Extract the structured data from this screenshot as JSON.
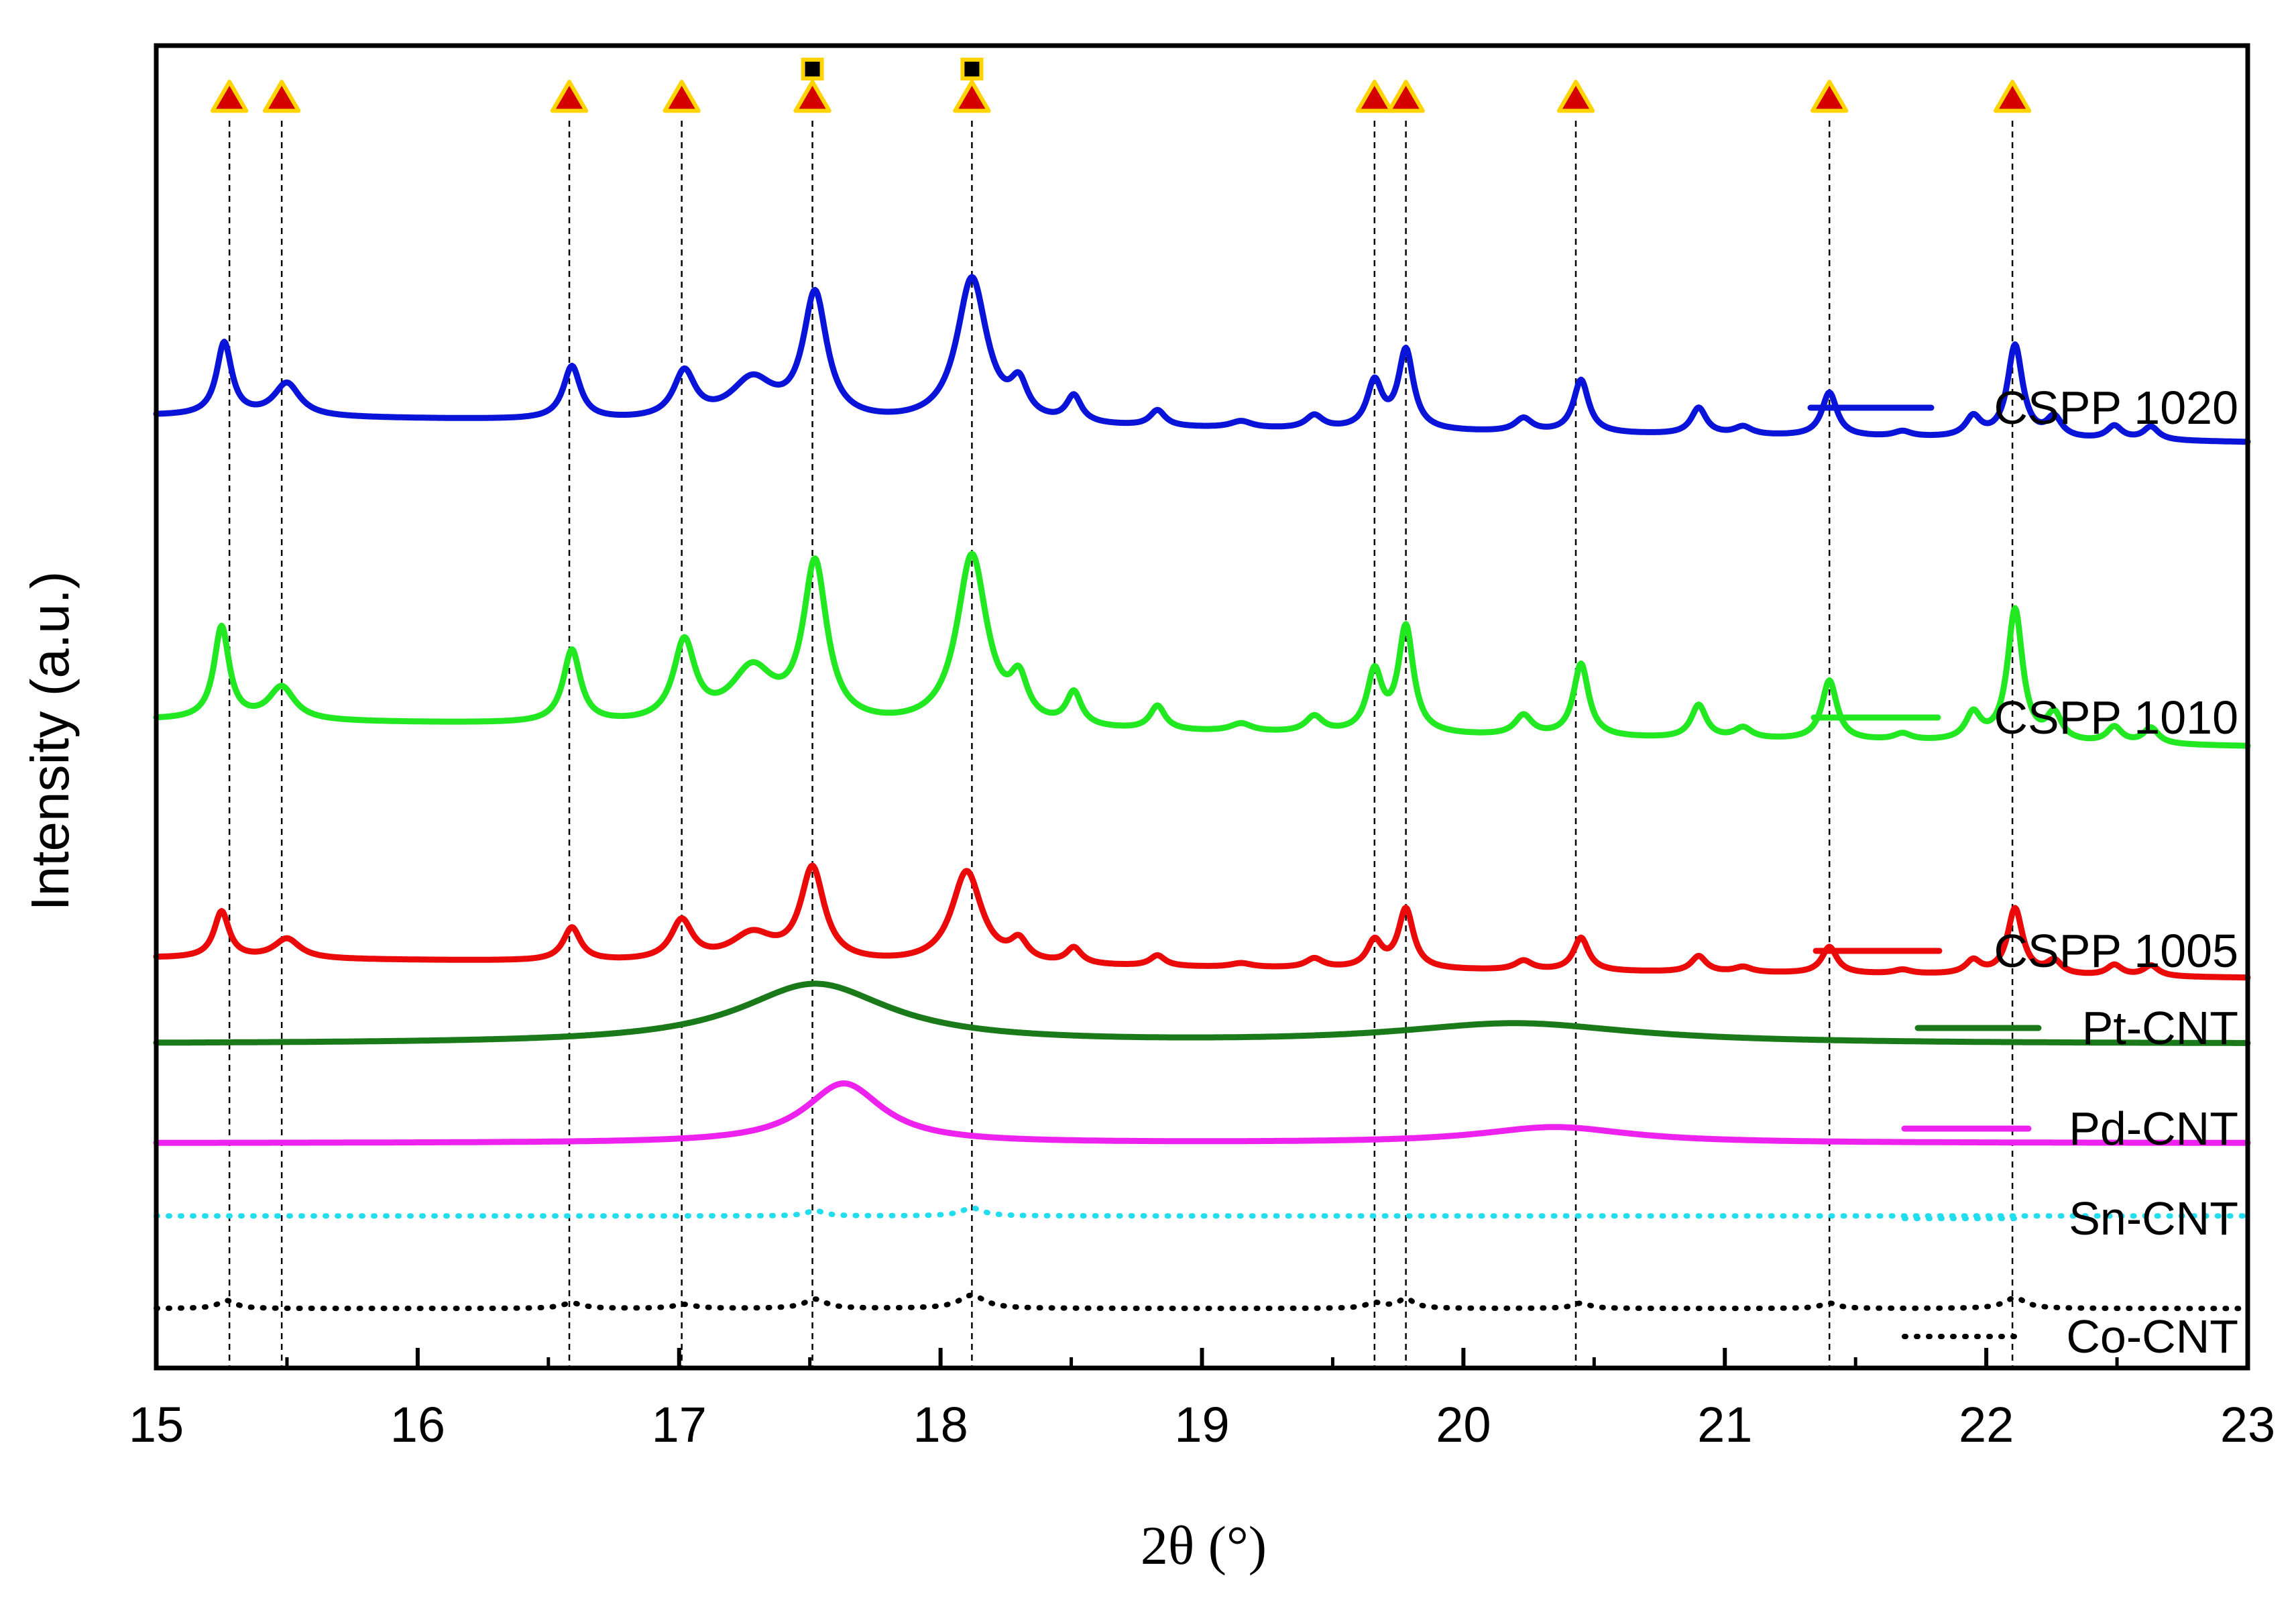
{
  "chart_data": {
    "type": "line",
    "title": "",
    "xlabel": "2θ (°)",
    "ylabel": "Intensity (a.u.)",
    "xlim": [
      15,
      23
    ],
    "xticks": [
      15,
      16,
      17,
      18,
      19,
      20,
      21,
      22,
      23
    ],
    "yticks_shown": false,
    "grid": false,
    "legend_placement": "right, beside each trace",
    "reference_lines_x": [
      15.28,
      15.48,
      16.58,
      17.01,
      17.51,
      18.12,
      19.66,
      19.78,
      20.43,
      21.4,
      22.1
    ],
    "markers": {
      "triangle": {
        "color": "#d40000",
        "edge_color": "#ffd400",
        "x": [
          15.28,
          15.48,
          16.58,
          17.01,
          17.51,
          18.12,
          19.66,
          19.78,
          20.43,
          21.4,
          22.1
        ]
      },
      "square": {
        "color": "#000000",
        "edge_color": "#ffd400",
        "x": [
          17.51,
          18.12
        ]
      }
    },
    "series": [
      {
        "name": "CSPP 1020",
        "color": "#0a14d8",
        "style": "solid",
        "baseline": 0.72,
        "baseline_end": 0.7,
        "peaks": [
          [
            15.26,
            0.055,
            0.035
          ],
          [
            15.5,
            0.025,
            0.06
          ],
          [
            16.59,
            0.04,
            0.04
          ],
          [
            17.02,
            0.035,
            0.05
          ],
          [
            17.28,
            0.03,
            0.1
          ],
          [
            17.52,
            0.095,
            0.055
          ],
          [
            18.12,
            0.11,
            0.07
          ],
          [
            18.3,
            0.025,
            0.04
          ],
          [
            18.51,
            0.02,
            0.035
          ],
          [
            18.83,
            0.012,
            0.035
          ],
          [
            19.15,
            0.005,
            0.05
          ],
          [
            19.43,
            0.01,
            0.04
          ],
          [
            19.66,
            0.035,
            0.035
          ],
          [
            19.78,
            0.06,
            0.035
          ],
          [
            20.23,
            0.01,
            0.04
          ],
          [
            20.45,
            0.04,
            0.035
          ],
          [
            20.9,
            0.02,
            0.035
          ],
          [
            21.07,
            0.006,
            0.04
          ],
          [
            21.4,
            0.033,
            0.035
          ],
          [
            21.68,
            0.004,
            0.04
          ],
          [
            21.95,
            0.015,
            0.035
          ],
          [
            22.11,
            0.07,
            0.035
          ],
          [
            22.26,
            0.015,
            0.035
          ],
          [
            22.49,
            0.01,
            0.035
          ],
          [
            22.63,
            0.01,
            0.035
          ]
        ]
      },
      {
        "name": "CSPP 1010",
        "color": "#22e822",
        "style": "solid",
        "baseline": 0.49,
        "baseline_end": 0.47,
        "peaks": [
          [
            15.25,
            0.07,
            0.035
          ],
          [
            15.48,
            0.025,
            0.06
          ],
          [
            16.59,
            0.055,
            0.04
          ],
          [
            17.02,
            0.06,
            0.05
          ],
          [
            17.28,
            0.04,
            0.1
          ],
          [
            17.52,
            0.12,
            0.055
          ],
          [
            18.12,
            0.13,
            0.07
          ],
          [
            18.3,
            0.03,
            0.04
          ],
          [
            18.51,
            0.025,
            0.035
          ],
          [
            18.83,
            0.018,
            0.035
          ],
          [
            19.15,
            0.006,
            0.05
          ],
          [
            19.43,
            0.012,
            0.04
          ],
          [
            19.66,
            0.045,
            0.035
          ],
          [
            19.78,
            0.08,
            0.035
          ],
          [
            20.23,
            0.015,
            0.04
          ],
          [
            20.45,
            0.055,
            0.035
          ],
          [
            20.9,
            0.025,
            0.035
          ],
          [
            21.07,
            0.008,
            0.04
          ],
          [
            21.4,
            0.045,
            0.035
          ],
          [
            21.68,
            0.005,
            0.04
          ],
          [
            21.95,
            0.02,
            0.035
          ],
          [
            22.11,
            0.1,
            0.035
          ],
          [
            22.26,
            0.02,
            0.035
          ],
          [
            22.49,
            0.012,
            0.035
          ],
          [
            22.63,
            0.012,
            0.035
          ]
        ]
      },
      {
        "name": "CSPP 1005",
        "color": "#ea0a0a",
        "style": "solid",
        "baseline": 0.31,
        "baseline_end": 0.295,
        "peaks": [
          [
            15.25,
            0.035,
            0.035
          ],
          [
            15.5,
            0.015,
            0.06
          ],
          [
            16.59,
            0.025,
            0.04
          ],
          [
            17.01,
            0.03,
            0.05
          ],
          [
            17.28,
            0.02,
            0.1
          ],
          [
            17.51,
            0.07,
            0.055
          ],
          [
            18.1,
            0.07,
            0.07
          ],
          [
            18.3,
            0.015,
            0.04
          ],
          [
            18.51,
            0.012,
            0.035
          ],
          [
            18.83,
            0.008,
            0.035
          ],
          [
            19.15,
            0.003,
            0.05
          ],
          [
            19.43,
            0.007,
            0.04
          ],
          [
            19.66,
            0.02,
            0.035
          ],
          [
            19.78,
            0.045,
            0.035
          ],
          [
            20.23,
            0.007,
            0.04
          ],
          [
            20.45,
            0.025,
            0.035
          ],
          [
            20.9,
            0.012,
            0.035
          ],
          [
            21.07,
            0.004,
            0.04
          ],
          [
            21.4,
            0.02,
            0.035
          ],
          [
            21.68,
            0.003,
            0.04
          ],
          [
            21.95,
            0.01,
            0.035
          ],
          [
            22.11,
            0.05,
            0.035
          ],
          [
            22.26,
            0.01,
            0.035
          ],
          [
            22.49,
            0.008,
            0.035
          ],
          [
            22.63,
            0.008,
            0.035
          ]
        ]
      },
      {
        "name": "Pt-CNT",
        "color": "#1a7a1a",
        "style": "solid",
        "baseline": 0.245,
        "baseline_end": 0.245,
        "peaks": [
          [
            17.52,
            0.045,
            0.35
          ],
          [
            20.2,
            0.015,
            0.55
          ]
        ]
      },
      {
        "name": "Pd-CNT",
        "color": "#ee22ee",
        "style": "solid",
        "baseline": 0.17,
        "baseline_end": 0.17,
        "peaks": [
          [
            17.63,
            0.045,
            0.18
          ],
          [
            20.35,
            0.012,
            0.35
          ]
        ]
      },
      {
        "name": "Sn-CNT",
        "color": "#22dded",
        "style": "dotted",
        "baseline": 0.115,
        "baseline_end": 0.115,
        "peaks": [
          [
            17.52,
            0.004,
            0.04
          ],
          [
            18.12,
            0.006,
            0.05
          ]
        ]
      },
      {
        "name": "Co-CNT",
        "color": "#000000",
        "style": "dotted",
        "baseline": 0.045,
        "baseline_end": 0.045,
        "peaks": [
          [
            15.27,
            0.006,
            0.04
          ],
          [
            16.59,
            0.004,
            0.05
          ],
          [
            17.02,
            0.003,
            0.05
          ],
          [
            17.52,
            0.007,
            0.05
          ],
          [
            18.12,
            0.01,
            0.06
          ],
          [
            19.66,
            0.004,
            0.04
          ],
          [
            19.78,
            0.007,
            0.04
          ],
          [
            20.45,
            0.004,
            0.04
          ],
          [
            21.4,
            0.004,
            0.04
          ],
          [
            22.11,
            0.008,
            0.05
          ]
        ]
      }
    ]
  }
}
